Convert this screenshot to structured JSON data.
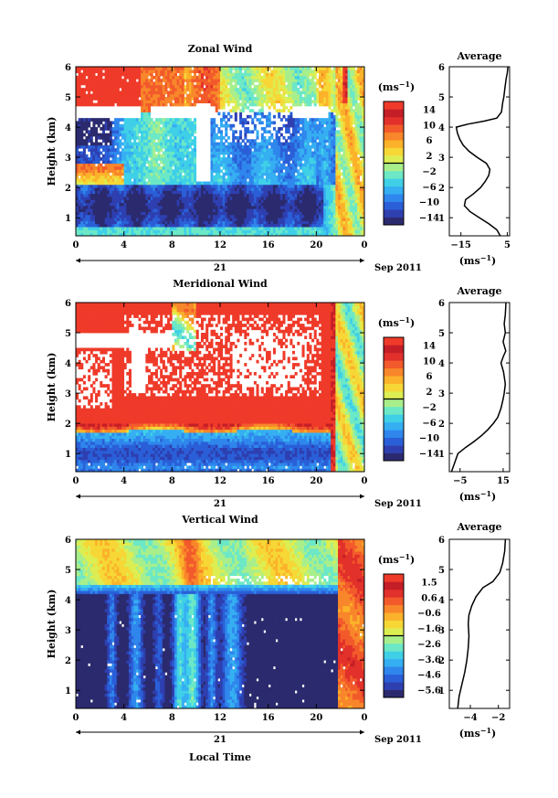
{
  "chart_data": [
    {
      "type": "heatmap",
      "title": "Zonal Wind",
      "ylabel": "Height (km)",
      "xlabel": "",
      "x_ticks": [
        "0",
        "4",
        "8",
        "12",
        "16",
        "20",
        "0"
      ],
      "y_ticks": [
        "1",
        "2",
        "3",
        "4",
        "5",
        "6"
      ],
      "date_labels": [
        "21",
        "Sep 2011"
      ],
      "xlim": [
        0,
        24
      ],
      "ylim": [
        0.4,
        6
      ],
      "colorbar": {
        "unit": "(ms",
        "unit_exp": "−1",
        "ticks": [
          "14",
          "10",
          "6",
          "2",
          "−2",
          "−6",
          "−10",
          "−14"
        ],
        "range": [
          -16,
          16
        ]
      },
      "average": {
        "title": "Average",
        "xlabel": "(ms",
        "xlabel_exp": "−1",
        "x_ticks": [
          "−15",
          "5"
        ],
        "xlim": [
          -20,
          6
        ],
        "profile": [
          [
            2.0,
            0.4
          ],
          [
            0.5,
            0.6
          ],
          [
            -3.0,
            0.8
          ],
          [
            -7.0,
            1.0
          ],
          [
            -11.0,
            1.2
          ],
          [
            -13.5,
            1.4
          ],
          [
            -13.0,
            1.6
          ],
          [
            -9.5,
            1.8
          ],
          [
            -6.5,
            2.0
          ],
          [
            -4.5,
            2.2
          ],
          [
            -3.0,
            2.4
          ],
          [
            -2.5,
            2.6
          ],
          [
            -4.0,
            2.8
          ],
          [
            -8.0,
            3.0
          ],
          [
            -11.5,
            3.2
          ],
          [
            -14.0,
            3.4
          ],
          [
            -15.5,
            3.6
          ],
          [
            -16.5,
            3.8
          ],
          [
            -17.0,
            4.0
          ],
          [
            -12.0,
            4.1
          ],
          [
            -5.0,
            4.2
          ],
          [
            0.5,
            4.3
          ],
          [
            2.5,
            4.5
          ],
          [
            3.0,
            4.8
          ],
          [
            3.5,
            5.0
          ],
          [
            4.0,
            5.3
          ],
          [
            4.5,
            5.6
          ],
          [
            5.0,
            5.8
          ],
          [
            5.3,
            6.0
          ]
        ]
      }
    },
    {
      "type": "heatmap",
      "title": "Meridional Wind",
      "ylabel": "Height (km)",
      "xlabel": "",
      "x_ticks": [
        "0",
        "4",
        "8",
        "12",
        "16",
        "20",
        "0"
      ],
      "y_ticks": [
        "1",
        "2",
        "3",
        "4",
        "5",
        "6"
      ],
      "date_labels": [
        "21",
        "Sep 2011"
      ],
      "xlim": [
        0,
        24
      ],
      "ylim": [
        0.4,
        6
      ],
      "colorbar": {
        "unit": "(ms",
        "unit_exp": "−1",
        "ticks": [
          "14",
          "10",
          "6",
          "2",
          "−2",
          "−6",
          "−10",
          "−14"
        ],
        "range": [
          -16,
          16
        ]
      },
      "average": {
        "title": "Average",
        "xlabel": "(ms",
        "xlabel_exp": "−1",
        "x_ticks": [
          "−5",
          "15"
        ],
        "xlim": [
          -10,
          18
        ],
        "profile": [
          [
            -9.0,
            0.4
          ],
          [
            -7.5,
            0.7
          ],
          [
            -6.0,
            1.0
          ],
          [
            -2.5,
            1.2
          ],
          [
            1.5,
            1.4
          ],
          [
            5.0,
            1.6
          ],
          [
            8.0,
            1.8
          ],
          [
            10.5,
            2.0
          ],
          [
            12.5,
            2.2
          ],
          [
            14.0,
            2.5
          ],
          [
            15.0,
            2.8
          ],
          [
            15.5,
            3.0
          ],
          [
            16.0,
            3.3
          ],
          [
            15.2,
            3.7
          ],
          [
            14.0,
            4.0
          ],
          [
            15.0,
            4.2
          ],
          [
            16.2,
            4.4
          ],
          [
            15.0,
            4.7
          ],
          [
            16.0,
            5.0
          ],
          [
            15.5,
            5.3
          ],
          [
            16.0,
            5.6
          ],
          [
            16.3,
            6.0
          ]
        ]
      }
    },
    {
      "type": "heatmap",
      "title": "Vertical Wind",
      "ylabel": "Height (km)",
      "xlabel": "Local Time",
      "x_ticks": [
        "0",
        "4",
        "8",
        "12",
        "16",
        "20",
        "0"
      ],
      "y_ticks": [
        "1",
        "2",
        "3",
        "4",
        "5",
        "6"
      ],
      "date_labels": [
        "21",
        "Sep 2011"
      ],
      "xlim": [
        0,
        24
      ],
      "ylim": [
        0.4,
        6
      ],
      "colorbar": {
        "unit": "(ms",
        "unit_exp": "−1",
        "ticks": [
          "1.5",
          "0.6",
          "−0.6",
          "−1.6",
          "−2.6",
          "−3.6",
          "−4.6",
          "−5.6"
        ],
        "range": [
          -6,
          2
        ]
      },
      "average": {
        "title": "Average",
        "xlabel": "(ms",
        "xlabel_exp": "−1",
        "x_ticks": [
          "−4",
          "−2"
        ],
        "xlim": [
          -5.5,
          -1.2
        ],
        "profile": [
          [
            -4.9,
            0.4
          ],
          [
            -4.8,
            0.8
          ],
          [
            -4.6,
            1.2
          ],
          [
            -4.4,
            1.6
          ],
          [
            -4.25,
            2.0
          ],
          [
            -4.15,
            2.4
          ],
          [
            -4.1,
            2.8
          ],
          [
            -4.15,
            3.2
          ],
          [
            -4.1,
            3.5
          ],
          [
            -3.9,
            3.8
          ],
          [
            -3.6,
            4.1
          ],
          [
            -3.1,
            4.4
          ],
          [
            -2.4,
            4.6
          ],
          [
            -1.9,
            4.9
          ],
          [
            -1.7,
            5.2
          ],
          [
            -1.55,
            5.6
          ],
          [
            -1.5,
            6.0
          ]
        ]
      }
    }
  ]
}
